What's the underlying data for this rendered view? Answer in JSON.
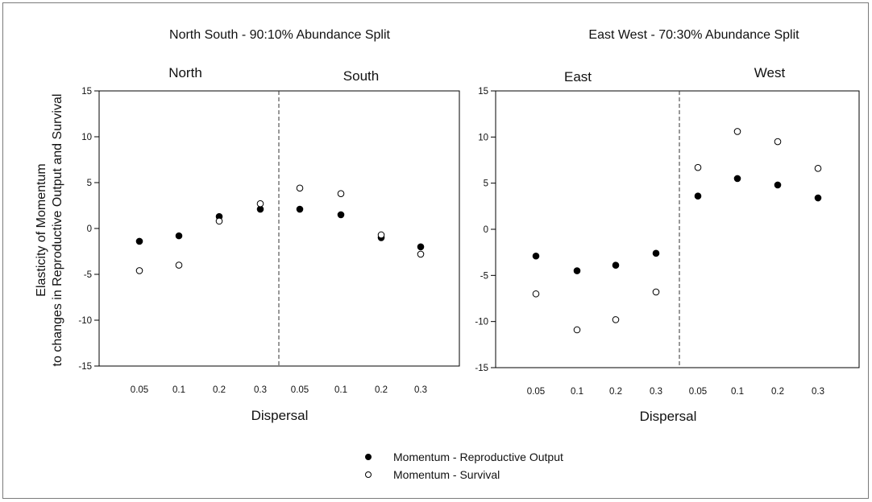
{
  "chart_data": [
    {
      "type": "scatter",
      "title": "North South - 90:10% Abundance Split",
      "ylabel_line1": "Elasticity of Momentum",
      "ylabel_line2": "to changes in Reproductive Output and Survival",
      "xlabel": "Dispersal",
      "ylim": [
        -15,
        15
      ],
      "yticks": [
        -15,
        -10,
        -5,
        0,
        5,
        10,
        15
      ],
      "grid": false,
      "panels": [
        {
          "region": "North",
          "categories": [
            "0.05",
            "0.1",
            "0.2",
            "0.3"
          ],
          "series": [
            {
              "name": "Momentum -  Reproductive Output",
              "values": [
                -1.4,
                -0.8,
                1.3,
                2.1
              ]
            },
            {
              "name": "Momentum - Survival",
              "values": [
                -4.6,
                -4.0,
                0.8,
                2.7
              ]
            }
          ]
        },
        {
          "region": "South",
          "categories": [
            "0.05",
            "0.1",
            "0.2",
            "0.3"
          ],
          "series": [
            {
              "name": "Momentum -  Reproductive Output",
              "values": [
                2.1,
                1.5,
                -1.0,
                -2.0
              ]
            },
            {
              "name": "Momentum - Survival",
              "values": [
                4.4,
                3.8,
                -0.7,
                -2.8
              ]
            }
          ]
        }
      ]
    },
    {
      "type": "scatter",
      "title": "East West - 70:30% Abundance Split",
      "xlabel": "Dispersal",
      "ylim": [
        -15,
        15
      ],
      "yticks": [
        -15,
        -10,
        -5,
        0,
        5,
        10,
        15
      ],
      "grid": false,
      "panels": [
        {
          "region": "East",
          "categories": [
            "0.05",
            "0.1",
            "0.2",
            "0.3"
          ],
          "series": [
            {
              "name": "Momentum -  Reproductive Output",
              "values": [
                -2.9,
                -4.5,
                -3.9,
                -2.6
              ]
            },
            {
              "name": "Momentum - Survival",
              "values": [
                -7.0,
                -10.9,
                -9.8,
                -6.8
              ]
            }
          ]
        },
        {
          "region": "West",
          "categories": [
            "0.05",
            "0.1",
            "0.2",
            "0.3"
          ],
          "series": [
            {
              "name": "Momentum -  Reproductive Output",
              "values": [
                3.6,
                5.5,
                4.8,
                3.4
              ]
            },
            {
              "name": "Momentum - Survival",
              "values": [
                6.7,
                10.6,
                9.5,
                6.6
              ]
            }
          ]
        }
      ]
    }
  ],
  "legend": {
    "placement": "bottom-center",
    "items": [
      {
        "label": "Momentum -  Reproductive Output",
        "marker": "filled-circle",
        "color": "#000000"
      },
      {
        "label": "Momentum - Survival",
        "marker": "open-circle",
        "color": "#000000"
      }
    ]
  }
}
